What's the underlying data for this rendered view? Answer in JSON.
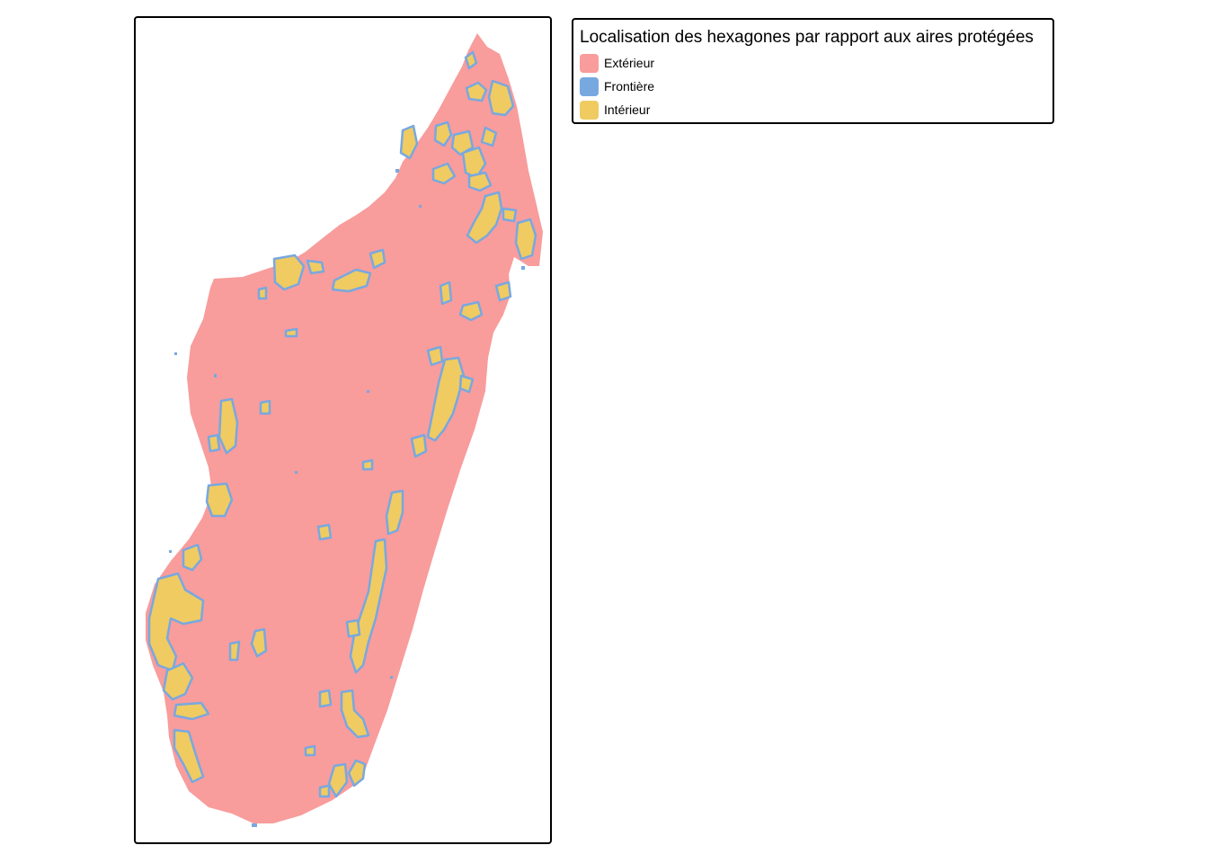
{
  "legend": {
    "title": "Localisation des hexagones par rapport aux aires protégées",
    "items": [
      {
        "label": "Extérieur",
        "color": "#F89C9C"
      },
      {
        "label": "Frontière",
        "color": "#78A8E0"
      },
      {
        "label": "Intérieur",
        "color": "#EFCB62"
      }
    ]
  },
  "map": {
    "region": "Madagascar",
    "fill_outside": "#F89C9C",
    "fill_border": "#78A8E0",
    "fill_inside": "#EFCB62"
  }
}
